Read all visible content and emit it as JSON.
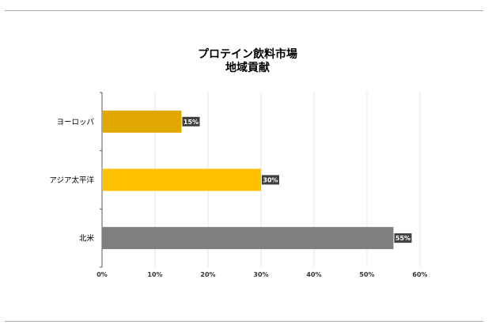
{
  "chart_data": {
    "type": "bar",
    "orientation": "horizontal",
    "title": [
      "プロテイン飲料市場",
      "地域貢献"
    ],
    "categories": [
      "ヨーロッパ",
      "アジア太平洋",
      "北米"
    ],
    "values": [
      15,
      30,
      55
    ],
    "data_labels": [
      "15%",
      "30%",
      "55%"
    ],
    "colors": [
      "#e0a800",
      "#ffc000",
      "#7f7f7f"
    ],
    "xlim": [
      0,
      60
    ],
    "x_ticks": [
      0,
      10,
      20,
      30,
      40,
      50,
      60
    ],
    "x_tick_labels": [
      "0%",
      "10%",
      "20%",
      "30%",
      "40%",
      "50%",
      "60%"
    ],
    "grid": true,
    "legend": "none"
  }
}
